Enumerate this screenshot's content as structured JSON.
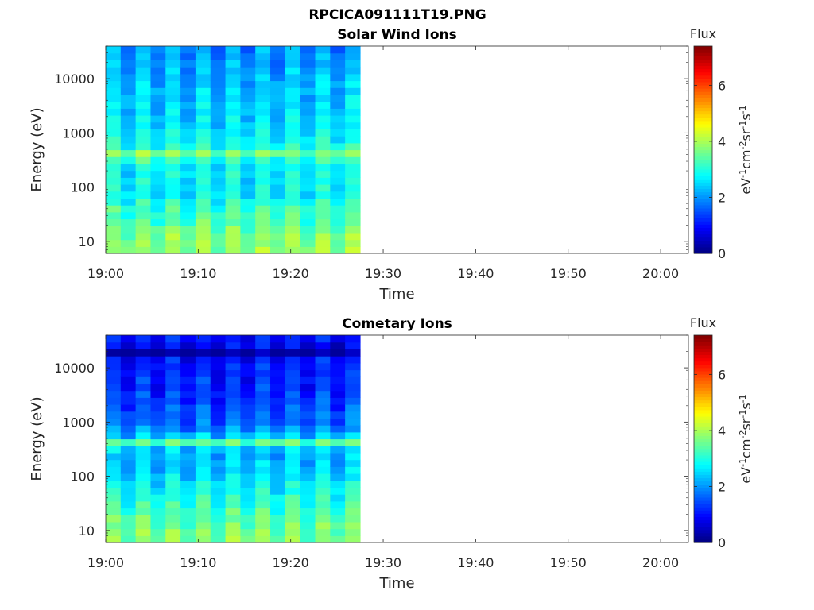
{
  "figure": {
    "title": "RPCICA091111T19.PNG"
  },
  "colormap": "jet",
  "chart_data": [
    {
      "type": "heatmap",
      "title": "Solar Wind Ions",
      "xlabel": "Time",
      "ylabel": "Energy (eV)",
      "x_ticks": [
        "19:00",
        "19:10",
        "19:20",
        "19:30",
        "19:40",
        "19:50",
        "20:00"
      ],
      "y_ticks": [
        "10",
        "100",
        "1000",
        "10000"
      ],
      "y_scale": "log",
      "ylim": [
        6,
        40000
      ],
      "xlim": [
        "19:00",
        "20:03"
      ],
      "data_extent": [
        "19:00",
        "19:27.5"
      ],
      "colorbar": {
        "title": "Flux",
        "label": "eV-1cm-2sr-1s-1",
        "ticks": [
          "0",
          "2",
          "4",
          "6"
        ],
        "range": [
          0,
          7.4
        ]
      },
      "energy_profile": [
        {
          "energy": 8,
          "flux": 3.7
        },
        {
          "energy": 15,
          "flux": 3.6
        },
        {
          "energy": 25,
          "flux": 3.2
        },
        {
          "energy": 40,
          "flux": 3.1
        },
        {
          "energy": 70,
          "flux": 2.7
        },
        {
          "energy": 150,
          "flux": 2.6
        },
        {
          "energy": 300,
          "flux": 2.8
        },
        {
          "energy": 380,
          "flux": 4.0
        },
        {
          "energy": 500,
          "flux": 3.0
        },
        {
          "energy": 1000,
          "flux": 2.5
        },
        {
          "energy": 3000,
          "flux": 2.4
        },
        {
          "energy": 10000,
          "flux": 2.2
        },
        {
          "energy": 30000,
          "flux": 1.9
        }
      ]
    },
    {
      "type": "heatmap",
      "title": "Cometary Ions",
      "xlabel": "Time",
      "ylabel": "Energy (eV)",
      "x_ticks": [
        "19:00",
        "19:10",
        "19:20",
        "19:30",
        "19:40",
        "19:50",
        "20:00"
      ],
      "y_ticks": [
        "10",
        "100",
        "1000",
        "10000"
      ],
      "y_scale": "log",
      "ylim": [
        6,
        40000
      ],
      "xlim": [
        "19:00",
        "20:03"
      ],
      "data_extent": [
        "19:00",
        "19:27.5"
      ],
      "colorbar": {
        "title": "Flux",
        "label": "eV-1cm-2sr-1s-1",
        "ticks": [
          "0",
          "2",
          "4",
          "6"
        ],
        "range": [
          0,
          7.4
        ]
      },
      "energy_profile": [
        {
          "energy": 8,
          "flux": 3.6
        },
        {
          "energy": 15,
          "flux": 3.4
        },
        {
          "energy": 25,
          "flux": 3.1
        },
        {
          "energy": 40,
          "flux": 2.9
        },
        {
          "energy": 70,
          "flux": 2.6
        },
        {
          "energy": 150,
          "flux": 2.3
        },
        {
          "energy": 300,
          "flux": 2.1
        },
        {
          "energy": 400,
          "flux": 3.6
        },
        {
          "energy": 600,
          "flux": 2.0
        },
        {
          "energy": 1000,
          "flux": 1.6
        },
        {
          "energy": 3000,
          "flux": 1.2
        },
        {
          "energy": 14000,
          "flux": 1.0
        },
        {
          "energy": 20000,
          "flux": 0
        },
        {
          "energy": 27000,
          "flux": 0.9
        }
      ]
    }
  ]
}
